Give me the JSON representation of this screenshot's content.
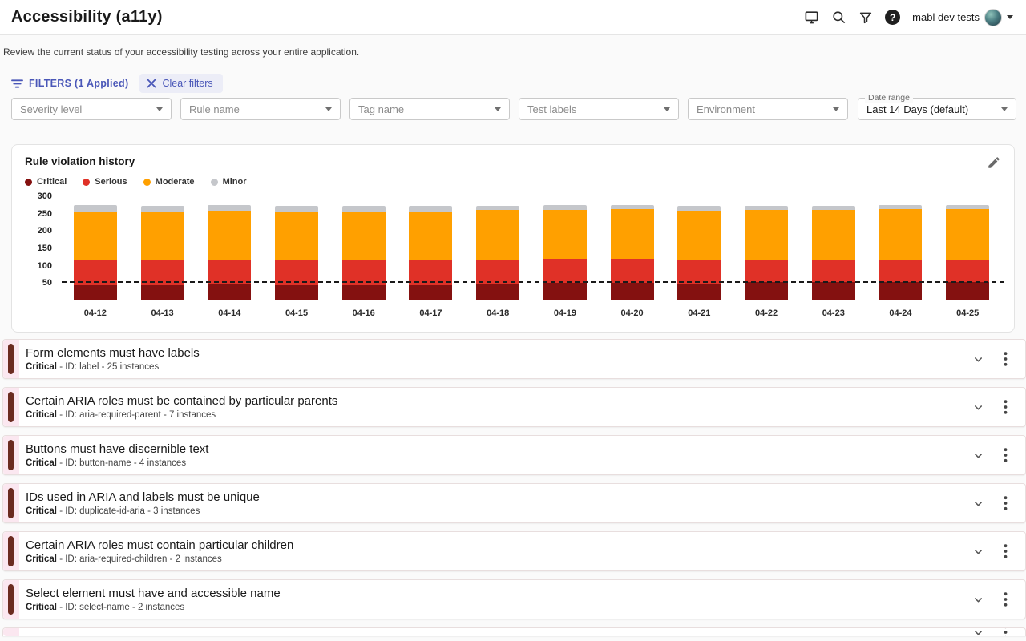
{
  "header": {
    "title": "Accessibility (a11y)",
    "account_name": "mabl dev tests"
  },
  "icons": {
    "top_right": [
      "monitor-icon",
      "search-icon",
      "funnel-icon",
      "help-icon",
      "caret-down-icon"
    ],
    "filters": [
      "filter-list-icon",
      "close-icon"
    ],
    "chart": [
      "pencil-icon"
    ],
    "row": [
      "chevron-down-icon",
      "kebab-menu-icon"
    ]
  },
  "subtitle": "Review the current status of your accessibility testing across your entire application.",
  "filters": {
    "label": "FILTERS  (1 Applied)",
    "clear_label": "Clear filters",
    "dropdowns": [
      {
        "placeholder": "Severity level"
      },
      {
        "placeholder": "Rule name"
      },
      {
        "placeholder": "Tag name"
      },
      {
        "placeholder": "Test labels"
      },
      {
        "placeholder": "Environment"
      }
    ],
    "date_range": {
      "label": "Date range",
      "value": "Last 14 Days (default)"
    }
  },
  "chart_data": {
    "type": "bar",
    "stacked": true,
    "title": "Rule violation history",
    "categories": [
      "04-12",
      "04-13",
      "04-14",
      "04-15",
      "04-16",
      "04-17",
      "04-18",
      "04-19",
      "04-20",
      "04-21",
      "04-22",
      "04-23",
      "04-24",
      "04-25"
    ],
    "series": [
      {
        "name": "Critical",
        "color": "#841110",
        "values": [
          45,
          45,
          46,
          45,
          45,
          45,
          48,
          50,
          50,
          48,
          52,
          52,
          52,
          52
        ]
      },
      {
        "name": "Serious",
        "color": "#e03127",
        "values": [
          72,
          72,
          72,
          72,
          72,
          72,
          70,
          69,
          70,
          70,
          66,
          66,
          66,
          66
        ]
      },
      {
        "name": "Moderate",
        "color": "#ffa000",
        "values": [
          138,
          138,
          140,
          138,
          138,
          138,
          142,
          143,
          143,
          140,
          143,
          143,
          144,
          144
        ]
      },
      {
        "name": "Minor",
        "color": "#c5c7cb",
        "values": [
          19,
          17,
          16,
          18,
          18,
          17,
          13,
          12,
          12,
          15,
          12,
          12,
          12,
          12
        ]
      }
    ],
    "ylim": [
      0,
      300
    ],
    "yticks": [
      50,
      100,
      150,
      200,
      250,
      300
    ],
    "threshold_line": 50,
    "legend_position": "top-left",
    "grid": false,
    "xlabel": "",
    "ylabel": ""
  },
  "violations": {
    "rows": [
      {
        "title": "Form elements must have labels",
        "severity": "Critical",
        "detail": " - ID: label - 25 instances"
      },
      {
        "title": "Certain ARIA roles must be contained by particular parents",
        "severity": "Critical",
        "detail": " - ID: aria-required-parent - 7 instances"
      },
      {
        "title": "Buttons must have discernible text",
        "severity": "Critical",
        "detail": " - ID: button-name - 4 instances"
      },
      {
        "title": "IDs used in ARIA and labels must be unique",
        "severity": "Critical",
        "detail": " - ID: duplicate-id-aria - 3 instances"
      },
      {
        "title": "Certain ARIA roles must contain particular children",
        "severity": "Critical",
        "detail": " - ID: aria-required-children - 2 instances"
      },
      {
        "title": "Select element must have and accessible name",
        "severity": "Critical",
        "detail": " - ID: select-name - 2 instances"
      }
    ],
    "partial_row_visible": true
  }
}
